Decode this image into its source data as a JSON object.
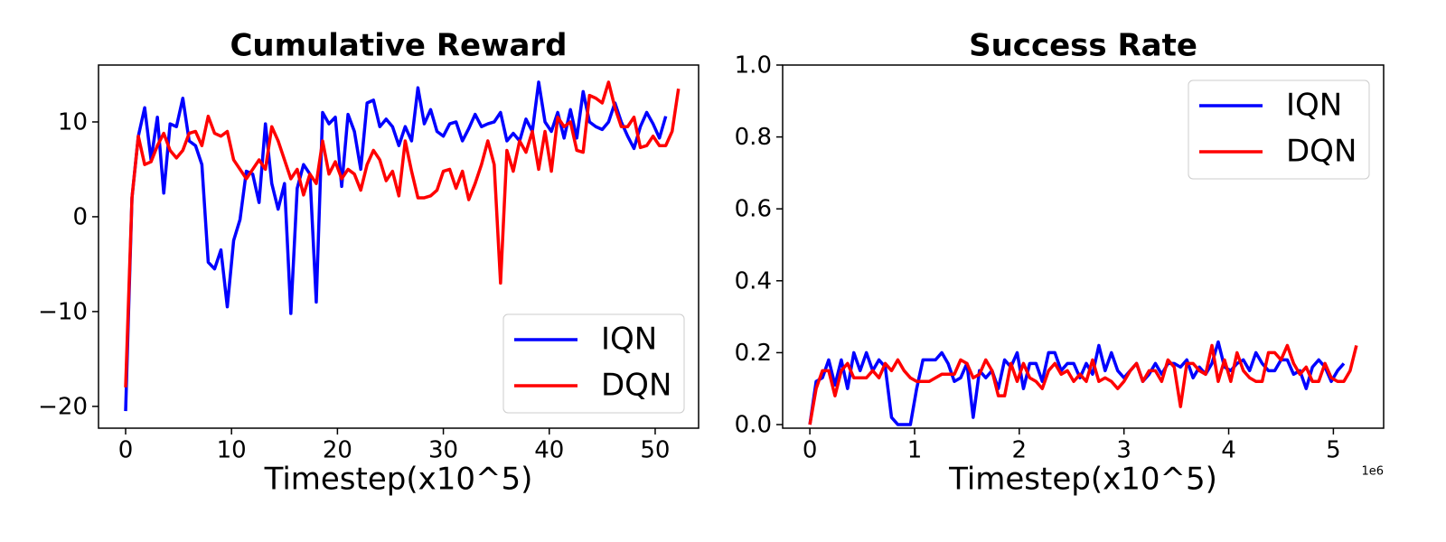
{
  "chart_data": [
    {
      "type": "line",
      "title": "Cumulative Reward",
      "x_label": "Timestep(x10^5)",
      "xlim": [
        -2.56,
        54.1
      ],
      "ylim": [
        -22.3,
        16
      ],
      "xticks": [
        0,
        10,
        20,
        30,
        40,
        50
      ],
      "yticks": [
        {
          "value": -20,
          "label": "−20"
        },
        {
          "value": -10,
          "label": "−10"
        },
        0,
        10
      ],
      "legend": "lower right",
      "series": [
        {
          "name": "IQN",
          "color": "#0000ff",
          "x": [
            0,
            0.6,
            1.2,
            1.8,
            2.4,
            3,
            3.6,
            4.2,
            4.8,
            5.4,
            6,
            6.6,
            7.2,
            7.8,
            8.4,
            9,
            9.6,
            10.2,
            10.8,
            11.4,
            12,
            12.6,
            13.2,
            13.8,
            14.4,
            15,
            15.6,
            16.2,
            16.8,
            17.4,
            18,
            18.6,
            19.2,
            19.8,
            20.4,
            21,
            21.6,
            22.2,
            22.8,
            23.4,
            24,
            24.6,
            25.2,
            25.8,
            26.4,
            27,
            27.6,
            28.2,
            28.8,
            29.4,
            30,
            30.6,
            31.2,
            31.8,
            32.4,
            33,
            33.6,
            34.2,
            34.8,
            35.4,
            36,
            36.6,
            37.2,
            37.8,
            38.4,
            39,
            39.6,
            40.2,
            40.8,
            41.4,
            42,
            42.6,
            43.2,
            43.8,
            44.4,
            45,
            45.6,
            46.2,
            46.8,
            47.4,
            48,
            48.6,
            49.2,
            49.8,
            50.4,
            51
          ],
          "values": [
            -20.5,
            2,
            8.5,
            11.5,
            6,
            10.5,
            2.5,
            9.8,
            9.5,
            12.5,
            8,
            7.5,
            5.5,
            -4.8,
            -5.5,
            -3.5,
            -9.5,
            -2.5,
            -0.3,
            4.8,
            4.5,
            1.5,
            9.8,
            3.5,
            0.8,
            3.5,
            -10.2,
            3,
            5.5,
            4.5,
            -9,
            11,
            9.8,
            10.5,
            3.2,
            10.8,
            9,
            5,
            12,
            12.3,
            9.5,
            10.3,
            9.5,
            7.5,
            9.5,
            8,
            13.6,
            9.8,
            11.3,
            9,
            8.5,
            9.8,
            10,
            8,
            9.3,
            10.8,
            9.5,
            9.8,
            10,
            11,
            8,
            8.8,
            8,
            10.3,
            9,
            14.2,
            10,
            9,
            11,
            8.3,
            11.3,
            8.3,
            13.2,
            10,
            9.5,
            9.2,
            10,
            12,
            10,
            8.5,
            7.2,
            9.5,
            11,
            9.8,
            8.3,
            10.6
          ]
        },
        {
          "name": "DQN",
          "color": "#ff0000",
          "x": [
            0,
            0.6,
            1.2,
            1.8,
            2.4,
            3,
            3.6,
            4.2,
            4.8,
            5.4,
            6,
            6.6,
            7.2,
            7.8,
            8.4,
            9,
            9.6,
            10.2,
            10.8,
            11.4,
            12,
            12.6,
            13.2,
            13.8,
            14.4,
            15,
            15.6,
            16.2,
            16.8,
            17.4,
            18,
            18.6,
            19.2,
            19.8,
            20.4,
            21,
            21.6,
            22.2,
            22.8,
            23.4,
            24,
            24.6,
            25.2,
            25.8,
            26.4,
            27,
            27.6,
            28.2,
            28.8,
            29.4,
            30,
            30.6,
            31.2,
            31.8,
            32.4,
            33,
            33.6,
            34.2,
            34.8,
            35.4,
            36,
            36.6,
            37.2,
            37.8,
            38.4,
            39,
            39.6,
            40.2,
            40.8,
            41.4,
            42,
            42.6,
            43.2,
            43.8,
            44.4,
            45,
            45.6,
            46.2,
            46.8,
            47.4,
            48,
            48.6,
            49.2,
            49.8,
            50.4,
            51,
            51.6,
            52.2
          ],
          "values": [
            -18,
            2,
            8.5,
            5.5,
            5.8,
            7.5,
            8.8,
            7,
            6.2,
            7,
            8.8,
            9,
            7.5,
            10.6,
            8.8,
            8.5,
            9,
            6,
            5,
            4,
            5,
            6,
            5,
            9.5,
            8,
            6,
            4,
            5,
            2.3,
            4.5,
            3.5,
            8,
            4.5,
            5.8,
            4,
            5,
            4.5,
            2.8,
            5.5,
            7,
            6,
            3.8,
            4.8,
            2.2,
            8,
            4.8,
            2,
            2,
            2.2,
            2.8,
            4.8,
            5,
            3,
            4.8,
            1.8,
            3.5,
            5.5,
            8,
            5.5,
            -7,
            7,
            4.8,
            8,
            6.8,
            9,
            5,
            9,
            4.8,
            10.5,
            9.5,
            10,
            7,
            6.8,
            12.8,
            12.5,
            12,
            14.2,
            11.5,
            9.5,
            9.5,
            10.5,
            7.3,
            7.5,
            8.5,
            7.5,
            7.5,
            9,
            13.5
          ]
        }
      ]
    },
    {
      "type": "line",
      "title": "Success Rate",
      "x_label": "Timestep(x10^5)",
      "x_offset_label": "1e6",
      "xlim": [
        -0.26,
        5.48
      ],
      "ylim": [
        -0.01,
        1.0
      ],
      "xticks": [
        0,
        1,
        2,
        3,
        4,
        5
      ],
      "yticks": [
        {
          "value": 0,
          "label": "0.0"
        },
        0.2,
        0.4,
        0.6,
        0.8,
        {
          "value": 1,
          "label": "1.0"
        }
      ],
      "legend": "upper right",
      "series": [
        {
          "name": "IQN",
          "color": "#0000ff",
          "x": [
            0,
            0.06,
            0.12,
            0.18,
            0.24,
            0.3,
            0.36,
            0.42,
            0.48,
            0.54,
            0.6,
            0.66,
            0.72,
            0.78,
            0.84,
            0.9,
            0.96,
            1.02,
            1.08,
            1.14,
            1.2,
            1.26,
            1.32,
            1.38,
            1.44,
            1.5,
            1.56,
            1.62,
            1.68,
            1.74,
            1.8,
            1.86,
            1.92,
            1.98,
            2.04,
            2.1,
            2.16,
            2.22,
            2.28,
            2.34,
            2.4,
            2.46,
            2.52,
            2.58,
            2.64,
            2.7,
            2.76,
            2.82,
            2.88,
            2.94,
            3,
            3.06,
            3.12,
            3.18,
            3.24,
            3.3,
            3.36,
            3.42,
            3.48,
            3.54,
            3.6,
            3.66,
            3.72,
            3.78,
            3.84,
            3.9,
            3.96,
            4.02,
            4.08,
            4.14,
            4.2,
            4.26,
            4.32,
            4.38,
            4.44,
            4.5,
            4.56,
            4.62,
            4.68,
            4.74,
            4.8,
            4.86,
            4.92,
            4.98,
            5.04,
            5.1
          ],
          "values": [
            0,
            0.12,
            0.13,
            0.18,
            0.11,
            0.18,
            0.1,
            0.2,
            0.15,
            0.2,
            0.15,
            0.18,
            0.16,
            0.02,
            0,
            0,
            0,
            0.1,
            0.18,
            0.18,
            0.18,
            0.2,
            0.17,
            0.12,
            0.13,
            0.17,
            0.02,
            0.15,
            0.13,
            0.15,
            0.1,
            0.18,
            0.16,
            0.2,
            0.1,
            0.17,
            0.17,
            0.12,
            0.2,
            0.2,
            0.15,
            0.17,
            0.17,
            0.13,
            0.17,
            0.14,
            0.22,
            0.15,
            0.2,
            0.15,
            0.13,
            0.15,
            0.17,
            0.12,
            0.14,
            0.17,
            0.14,
            0.17,
            0.17,
            0.16,
            0.18,
            0.13,
            0.16,
            0.14,
            0.17,
            0.23,
            0.16,
            0.15,
            0.17,
            0.18,
            0.15,
            0.2,
            0.17,
            0.15,
            0.15,
            0.18,
            0.18,
            0.14,
            0.15,
            0.1,
            0.16,
            0.18,
            0.16,
            0.12,
            0.15,
            0.17
          ]
        },
        {
          "name": "DQN",
          "color": "#ff0000",
          "x": [
            0,
            0.06,
            0.12,
            0.18,
            0.24,
            0.3,
            0.36,
            0.42,
            0.48,
            0.54,
            0.6,
            0.66,
            0.72,
            0.78,
            0.84,
            0.9,
            0.96,
            1.02,
            1.08,
            1.14,
            1.2,
            1.26,
            1.32,
            1.38,
            1.44,
            1.5,
            1.56,
            1.62,
            1.68,
            1.74,
            1.8,
            1.86,
            1.92,
            1.98,
            2.04,
            2.1,
            2.16,
            2.22,
            2.28,
            2.34,
            2.4,
            2.46,
            2.52,
            2.58,
            2.64,
            2.7,
            2.76,
            2.82,
            2.88,
            2.94,
            3,
            3.06,
            3.12,
            3.18,
            3.24,
            3.3,
            3.36,
            3.42,
            3.48,
            3.54,
            3.6,
            3.66,
            3.72,
            3.78,
            3.84,
            3.9,
            3.96,
            4.02,
            4.08,
            4.14,
            4.2,
            4.26,
            4.32,
            4.38,
            4.44,
            4.5,
            4.56,
            4.62,
            4.68,
            4.74,
            4.8,
            4.86,
            4.92,
            4.98,
            5.04,
            5.1,
            5.16,
            5.22
          ],
          "values": [
            0,
            0.1,
            0.15,
            0.15,
            0.08,
            0.15,
            0.17,
            0.13,
            0.13,
            0.13,
            0.15,
            0.13,
            0.17,
            0.15,
            0.18,
            0.15,
            0.13,
            0.12,
            0.12,
            0.12,
            0.13,
            0.14,
            0.14,
            0.14,
            0.18,
            0.17,
            0.13,
            0.14,
            0.18,
            0.15,
            0.08,
            0.08,
            0.17,
            0.12,
            0.17,
            0.13,
            0.12,
            0.1,
            0.15,
            0.17,
            0.14,
            0.15,
            0.12,
            0.14,
            0.12,
            0.18,
            0.12,
            0.13,
            0.12,
            0.1,
            0.12,
            0.15,
            0.17,
            0.12,
            0.15,
            0.15,
            0.12,
            0.18,
            0.16,
            0.05,
            0.17,
            0.17,
            0.15,
            0.14,
            0.22,
            0.12,
            0.18,
            0.12,
            0.2,
            0.15,
            0.13,
            0.12,
            0.12,
            0.2,
            0.2,
            0.18,
            0.22,
            0.17,
            0.14,
            0.16,
            0.12,
            0.12,
            0.17,
            0.13,
            0.12,
            0.12,
            0.15,
            0.22
          ]
        }
      ]
    }
  ]
}
